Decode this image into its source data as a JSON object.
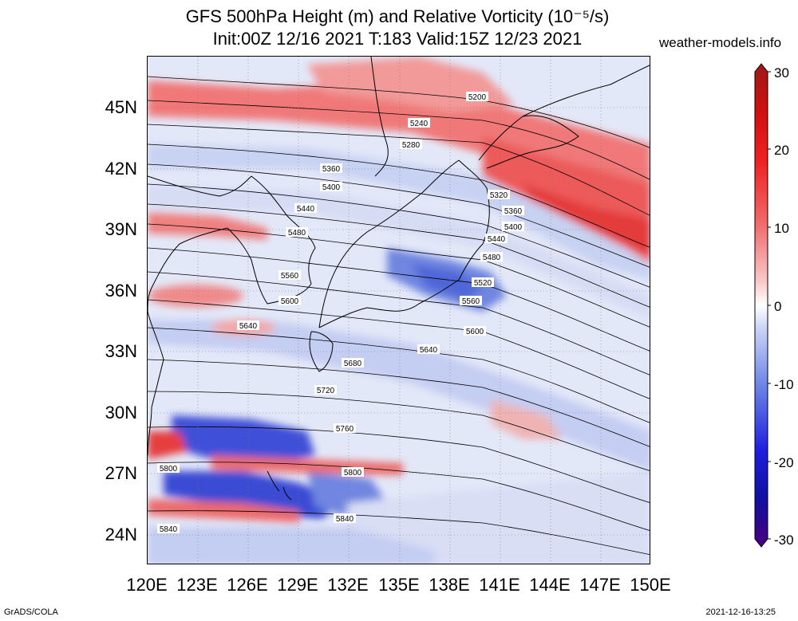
{
  "title": {
    "line1": "GFS 500hPa Height (m) and Relative Vorticity (10⁻⁵/s)",
    "line2": "Init:00Z 12/16 2021 T:183 Valid:15Z 12/23 2021"
  },
  "site": "weather-models.info",
  "axes": {
    "lat_labels": [
      "45N",
      "42N",
      "39N",
      "36N",
      "33N",
      "30N",
      "27N",
      "24N"
    ],
    "lon_labels": [
      "120E",
      "123E",
      "126E",
      "129E",
      "132E",
      "135E",
      "138E",
      "141E",
      "144E",
      "147E",
      "150E"
    ]
  },
  "colorbar": {
    "labels": [
      "30",
      "20",
      "10",
      "0",
      "-10",
      "-20",
      "-30"
    ],
    "colors": [
      "#4b0082",
      "#1f1fd6",
      "#5a78e6",
      "#c8d2f5",
      "#ffffff",
      "#f5c8c8",
      "#f06060",
      "#e01010",
      "#a01818"
    ]
  },
  "contours": [
    "5200",
    "5240",
    "5280",
    "5320",
    "5360",
    "5400",
    "5440",
    "5480",
    "5520",
    "5560",
    "5600",
    "5640",
    "5680",
    "5720",
    "5760",
    "5800",
    "5840"
  ],
  "footer": {
    "left": "GrADS/COLA",
    "right": "2021-12-16-13:25"
  }
}
